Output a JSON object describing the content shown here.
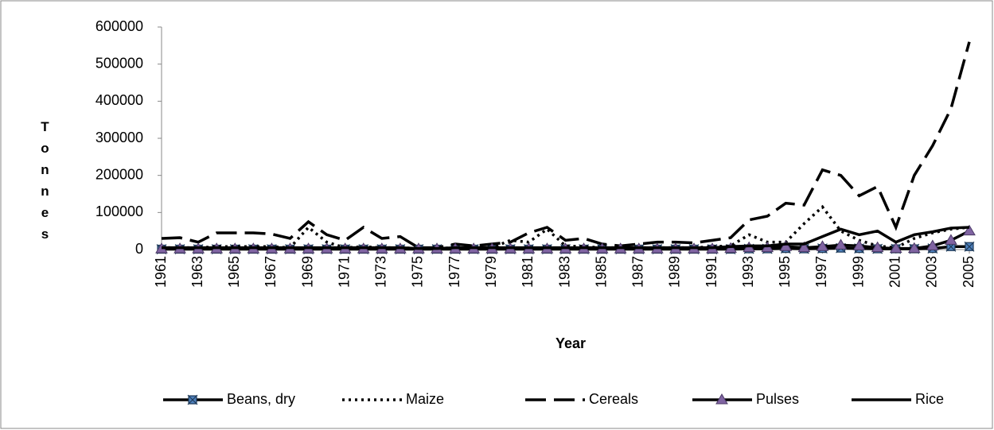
{
  "chart_data": {
    "type": "line",
    "y_axis_label": "Tonnes",
    "x_axis_label": "Year",
    "x": [
      1961,
      1962,
      1963,
      1964,
      1965,
      1966,
      1967,
      1968,
      1969,
      1970,
      1971,
      1972,
      1973,
      1974,
      1975,
      1976,
      1977,
      1978,
      1979,
      1980,
      1981,
      1982,
      1983,
      1984,
      1985,
      1986,
      1987,
      1988,
      1989,
      1990,
      1991,
      1992,
      1993,
      1994,
      1995,
      1996,
      1997,
      1998,
      1999,
      2000,
      2001,
      2002,
      2003,
      2004,
      2005
    ],
    "xlim": [
      1961,
      2005
    ],
    "xticks": [
      1961,
      1963,
      1965,
      1967,
      1969,
      1971,
      1973,
      1975,
      1977,
      1979,
      1981,
      1983,
      1985,
      1987,
      1989,
      1991,
      1993,
      1995,
      1997,
      1999,
      2001,
      2003,
      2005
    ],
    "ylim": [
      0,
      600000
    ],
    "yticks": [
      0,
      100000,
      200000,
      300000,
      400000,
      500000,
      600000
    ],
    "legend": "bottom",
    "series": [
      {
        "name": "Beans, dry",
        "color": "#000000",
        "line_style": "solid",
        "marker": "star",
        "marker_color": "#4f81bd",
        "values": [
          1000,
          1000,
          1000,
          1000,
          1000,
          1000,
          1000,
          1000,
          1000,
          1000,
          1000,
          1000,
          1000,
          1000,
          1000,
          1000,
          1000,
          1000,
          1000,
          1000,
          1000,
          1000,
          1000,
          1000,
          1000,
          1000,
          1000,
          1000,
          1000,
          1000,
          1000,
          1000,
          2000,
          2000,
          3000,
          2000,
          3000,
          4000,
          3000,
          2000,
          2000,
          2000,
          3000,
          8000,
          8000
        ]
      },
      {
        "name": "Maize",
        "color": "#000000",
        "line_style": "dotted",
        "values": [
          5000,
          5000,
          5000,
          8000,
          8000,
          8000,
          8000,
          5000,
          60000,
          20000,
          5000,
          8000,
          5000,
          5000,
          3000,
          3000,
          5000,
          5000,
          5000,
          25000,
          20000,
          55000,
          10000,
          8000,
          5000,
          5000,
          5000,
          5000,
          5000,
          5000,
          8000,
          10000,
          40000,
          20000,
          20000,
          70000,
          115000,
          50000,
          25000,
          10000,
          5000,
          30000,
          45000,
          55000,
          60000
        ]
      },
      {
        "name": "Cereals",
        "color": "#000000",
        "line_style": "dashed",
        "values": [
          30000,
          32000,
          20000,
          45000,
          45000,
          45000,
          42000,
          30000,
          75000,
          40000,
          25000,
          60000,
          30000,
          35000,
          5000,
          5000,
          15000,
          10000,
          15000,
          20000,
          45000,
          60000,
          25000,
          30000,
          15000,
          10000,
          15000,
          20000,
          20000,
          18000,
          25000,
          32000,
          80000,
          90000,
          125000,
          120000,
          215000,
          200000,
          145000,
          170000,
          60000,
          200000,
          280000,
          380000,
          560000
        ]
      },
      {
        "name": "Pulses",
        "color": "#000000",
        "line_style": "solid",
        "marker": "triangle",
        "marker_color": "#8064a2",
        "values": [
          2000,
          2000,
          2000,
          2000,
          2000,
          2000,
          2000,
          2000,
          2000,
          2000,
          2000,
          2000,
          2000,
          2000,
          2000,
          2000,
          2000,
          2000,
          2000,
          2000,
          2000,
          2000,
          2000,
          2000,
          2000,
          2000,
          2000,
          2000,
          2000,
          2000,
          2000,
          3000,
          5000,
          5000,
          8000,
          5000,
          8000,
          12000,
          10000,
          5000,
          3000,
          3000,
          10000,
          25000,
          50000
        ]
      },
      {
        "name": "Rice",
        "color": "#000000",
        "line_style": "solid",
        "values": [
          5000,
          5000,
          5000,
          5000,
          5000,
          5000,
          5000,
          5000,
          5000,
          5000,
          5000,
          5000,
          5000,
          5000,
          3000,
          3000,
          5000,
          5000,
          5000,
          5000,
          5000,
          5000,
          5000,
          5000,
          5000,
          5000,
          5000,
          5000,
          5000,
          5000,
          5000,
          8000,
          10000,
          10000,
          15000,
          15000,
          35000,
          55000,
          40000,
          50000,
          20000,
          40000,
          48000,
          58000,
          60000
        ]
      }
    ]
  }
}
